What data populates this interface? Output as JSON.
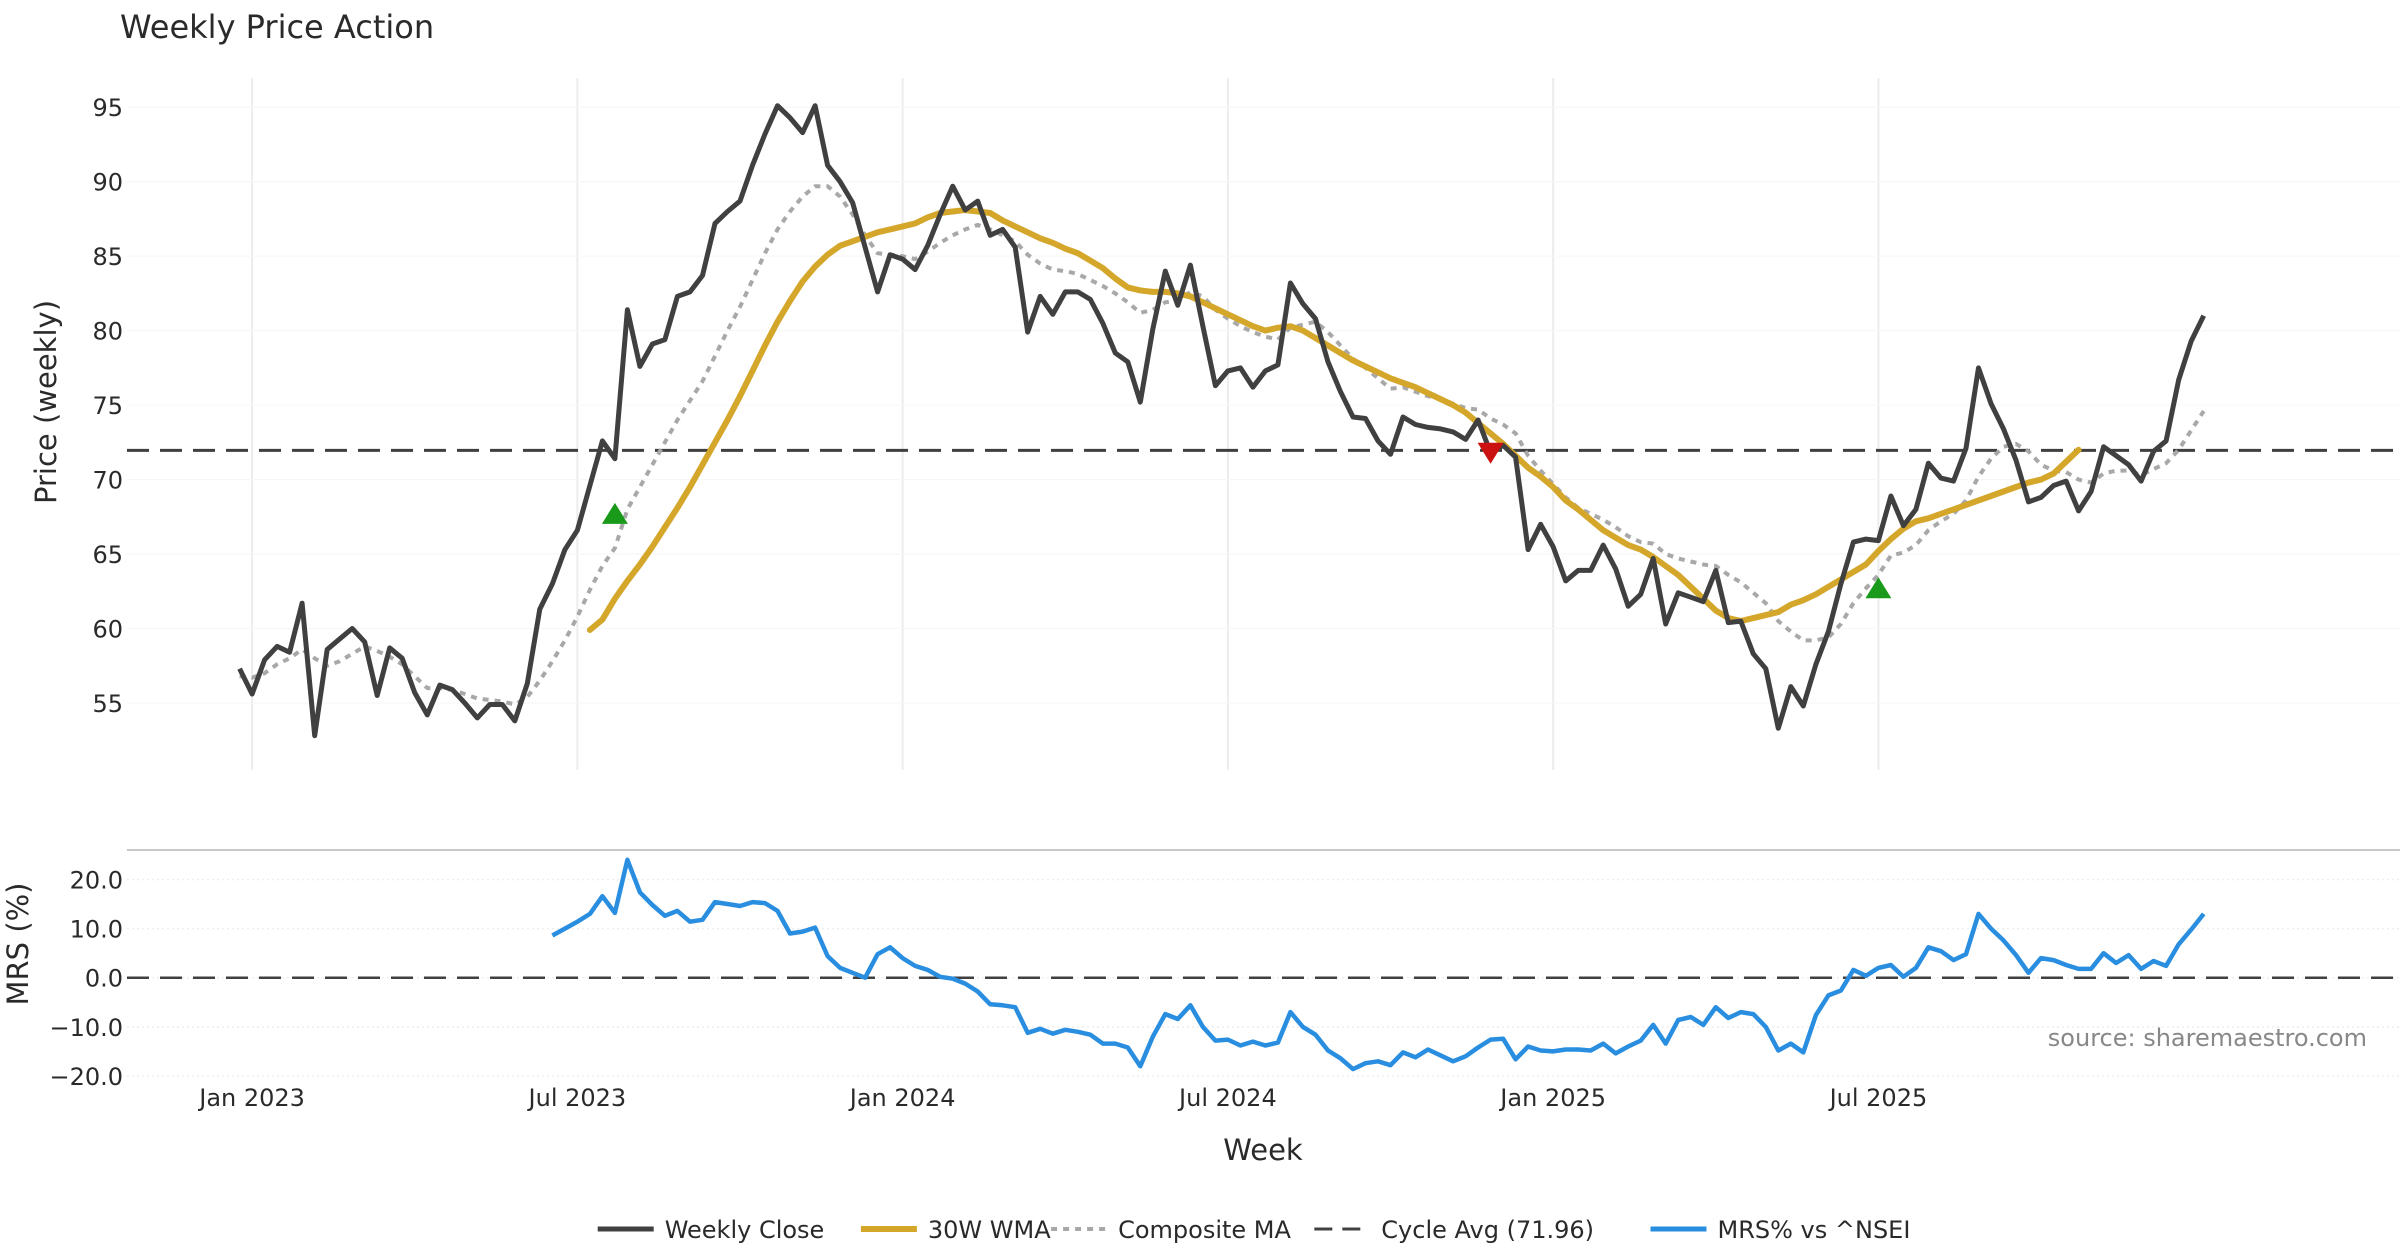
{
  "title": "Weekly Price Action",
  "source": "source: sharemaestro.com",
  "colors": {
    "close": "#404040",
    "wma": "#d4a62a",
    "composite": "#a8a8a8",
    "cycle": "#404040",
    "mrs": "#2a8ee0",
    "buy": "#1a9a1a",
    "sell": "#cc1111",
    "grid": "#ececec"
  },
  "chart_data": [
    {
      "type": "line",
      "title": "Weekly Price Action",
      "xlabel": "",
      "ylabel": "Price (weekly)",
      "ylim": [
        50.5,
        97.5
      ],
      "yticks": [
        55,
        60,
        65,
        70,
        75,
        80,
        85,
        90,
        95
      ],
      "x_start": "2022-12-26",
      "grid": true,
      "cycle_avg": 71.96,
      "series": [
        {
          "name": "Weekly Close",
          "values": [
            57.3,
            55.6,
            57.9,
            58.8,
            58.4,
            61.7,
            52.8,
            58.6,
            59.3,
            60.0,
            59.1,
            55.5,
            58.7,
            58.0,
            55.7,
            54.2,
            56.2,
            55.9,
            55.0,
            54.0,
            54.9,
            54.9,
            53.8,
            56.3,
            61.3,
            63.0,
            65.3,
            66.6,
            69.6,
            72.6,
            71.4,
            81.4,
            77.6,
            79.1,
            79.4,
            82.3,
            82.6,
            83.7,
            87.2,
            88.0,
            88.7,
            91.1,
            93.2,
            95.1,
            94.3,
            93.3,
            95.1,
            91.1,
            90.0,
            88.6,
            85.6,
            82.6,
            85.1,
            84.8,
            84.1,
            85.7,
            87.8,
            89.7,
            88.1,
            88.7,
            86.4,
            86.8,
            85.6,
            79.9,
            82.3,
            81.1,
            82.6,
            82.6,
            82.1,
            80.5,
            78.5,
            77.9,
            75.2,
            80.1,
            84.0,
            81.7,
            84.4,
            80.3,
            76.3,
            77.3,
            77.5,
            76.2,
            77.3,
            77.7,
            83.2,
            81.8,
            80.8,
            77.9,
            75.9,
            74.2,
            74.1,
            72.6,
            71.7,
            74.2,
            73.7,
            73.5,
            73.4,
            73.2,
            72.7,
            74.0,
            71.8,
            72.3,
            71.5,
            65.3,
            67.0,
            65.5,
            63.2,
            63.9,
            63.9,
            65.6,
            64.0,
            61.5,
            62.3,
            64.7,
            60.3,
            62.4,
            62.1,
            61.8,
            63.9,
            60.4,
            60.5,
            58.3,
            57.3,
            53.3,
            56.1,
            54.8,
            57.6,
            59.8,
            63.0,
            65.8,
            66.0,
            65.9,
            68.9,
            66.9,
            68.0,
            71.1,
            70.1,
            69.9,
            72.1,
            77.5,
            75.1,
            73.4,
            71.3,
            68.5,
            68.8,
            69.6,
            69.9,
            67.9,
            69.2,
            72.2,
            71.6,
            71.0,
            69.9,
            71.9,
            72.6,
            76.7,
            79.3,
            81.0
          ]
        },
        {
          "name": "30W WMA",
          "start_index": 28,
          "values": [
            59.9,
            60.6,
            62.0,
            63.2,
            64.3,
            65.5,
            66.8,
            68.1,
            69.5,
            71.0,
            72.5,
            74.0,
            75.6,
            77.3,
            79.0,
            80.6,
            82.0,
            83.3,
            84.3,
            85.1,
            85.7,
            86.0,
            86.3,
            86.6,
            86.8,
            87.0,
            87.2,
            87.6,
            87.9,
            88.0,
            88.1,
            88.0,
            87.9,
            87.4,
            87.0,
            86.6,
            86.2,
            85.9,
            85.5,
            85.2,
            84.7,
            84.2,
            83.5,
            82.9,
            82.7,
            82.6,
            82.6,
            82.5,
            82.3,
            81.9,
            81.5,
            81.1,
            80.7,
            80.3,
            80.0,
            80.2,
            80.3,
            80.0,
            79.5,
            79.0,
            78.5,
            78.0,
            77.6,
            77.2,
            76.8,
            76.5,
            76.2,
            75.8,
            75.4,
            75.0,
            74.5,
            73.8,
            73.1,
            72.4,
            71.6,
            70.8,
            70.2,
            69.5,
            68.6,
            68.0,
            67.3,
            66.6,
            66.1,
            65.6,
            65.3,
            64.8,
            64.2,
            63.6,
            62.8,
            62.0,
            61.2,
            60.7,
            60.5,
            60.7,
            60.9,
            61.1,
            61.6,
            61.9,
            62.3,
            62.8,
            63.3,
            63.8,
            64.3,
            65.2,
            66.0,
            66.7,
            67.2,
            67.4,
            67.7,
            68.0,
            68.3,
            68.6,
            68.9,
            69.2,
            69.5,
            69.8,
            70.0,
            70.4,
            71.2,
            72.0
          ]
        },
        {
          "name": "Composite MA",
          "values": [
            56.8,
            56.7,
            57.0,
            57.6,
            58.0,
            58.6,
            58.0,
            57.5,
            57.8,
            58.3,
            58.8,
            58.5,
            58.1,
            57.6,
            56.8,
            56.0,
            56.0,
            55.9,
            55.6,
            55.3,
            55.2,
            55.1,
            54.9,
            55.4,
            56.5,
            57.8,
            59.2,
            60.8,
            62.6,
            64.2,
            65.4,
            68.0,
            69.5,
            71.0,
            72.5,
            74.0,
            75.3,
            76.6,
            78.3,
            80.0,
            81.6,
            83.4,
            85.2,
            86.8,
            88.0,
            89.0,
            89.7,
            89.7,
            89.0,
            87.8,
            86.4,
            85.2,
            85.1,
            85.0,
            84.8,
            85.3,
            85.9,
            86.4,
            86.8,
            87.1,
            86.8,
            86.4,
            86.0,
            85.1,
            84.5,
            84.1,
            84.0,
            83.8,
            83.4,
            83.0,
            82.5,
            81.9,
            81.2,
            81.4,
            81.9,
            82.0,
            82.6,
            82.3,
            81.4,
            80.8,
            80.3,
            79.9,
            79.6,
            79.4,
            80.2,
            80.4,
            80.6,
            79.9,
            79.0,
            78.1,
            77.5,
            76.8,
            76.1,
            76.2,
            75.9,
            75.6,
            75.4,
            75.1,
            74.8,
            74.7,
            74.1,
            73.7,
            73.1,
            71.6,
            70.6,
            69.7,
            68.8,
            68.1,
            67.7,
            67.3,
            66.8,
            66.2,
            65.8,
            65.7,
            65.0,
            64.7,
            64.5,
            64.3,
            64.2,
            63.6,
            63.1,
            62.4,
            61.7,
            60.5,
            59.8,
            59.2,
            59.2,
            59.4,
            60.3,
            61.7,
            62.7,
            63.6,
            64.9,
            65.1,
            65.6,
            66.6,
            67.2,
            67.7,
            68.6,
            70.2,
            71.4,
            72.2,
            72.4,
            71.9,
            71.0,
            70.6,
            70.5,
            70.0,
            69.8,
            70.4,
            70.6,
            70.6,
            70.3,
            70.7,
            71.1,
            72.0,
            73.3,
            74.6
          ]
        }
      ],
      "signals": [
        {
          "type": "buy",
          "index": 30,
          "value": 67.7
        },
        {
          "type": "sell",
          "index": 100,
          "value": 71.8
        },
        {
          "type": "buy",
          "index": 131,
          "value": 62.7
        }
      ]
    },
    {
      "type": "line",
      "title": "",
      "xlabel": "Week",
      "ylabel": "MRS (%)",
      "ylim": [
        -20,
        26
      ],
      "yticks": [
        -20.0,
        -10.0,
        0.0,
        10.0,
        20.0
      ],
      "ytick_labels": [
        "−20.0",
        "−10.0",
        "0.0",
        "10.0",
        "20.0"
      ],
      "xticks": [
        {
          "label": "Jan 2023",
          "index": 1
        },
        {
          "label": "Jul 2023",
          "index": 27
        },
        {
          "label": "Jan 2024",
          "index": 53
        },
        {
          "label": "Jul 2024",
          "index": 79
        },
        {
          "label": "Jan 2025",
          "index": 105
        },
        {
          "label": "Jul 2025",
          "index": 131
        }
      ],
      "series": [
        {
          "name": "MRS% vs ^NSEI",
          "start_index": 25,
          "values": [
            8.6,
            10.0,
            11.4,
            13.0,
            16.6,
            13.2,
            24.0,
            17.4,
            14.8,
            12.6,
            13.6,
            11.4,
            11.8,
            15.4,
            15.0,
            14.6,
            15.4,
            15.2,
            13.6,
            9.0,
            9.4,
            10.2,
            4.4,
            2.0,
            1.0,
            0.0,
            4.8,
            6.2,
            4.0,
            2.4,
            1.6,
            0.2,
            -0.2,
            -1.2,
            -2.8,
            -5.4,
            -5.6,
            -6.0,
            -11.2,
            -10.4,
            -11.4,
            -10.6,
            -11.0,
            -11.6,
            -13.4,
            -13.4,
            -14.2,
            -18.0,
            -12.0,
            -7.4,
            -8.4,
            -5.6,
            -10.0,
            -12.8,
            -12.6,
            -13.8,
            -13.0,
            -13.8,
            -13.2,
            -7.0,
            -10.0,
            -11.6,
            -14.8,
            -16.4,
            -18.6,
            -17.4,
            -17.0,
            -17.8,
            -15.2,
            -16.2,
            -14.6,
            -15.8,
            -17.0,
            -16.0,
            -14.2,
            -12.6,
            -12.4,
            -16.6,
            -14.0,
            -14.8,
            -15.0,
            -14.6,
            -14.6,
            -14.8,
            -13.4,
            -15.4,
            -14.0,
            -12.8,
            -9.6,
            -13.4,
            -8.6,
            -8.0,
            -9.6,
            -6.0,
            -8.2,
            -7.0,
            -7.4,
            -10.0,
            -14.8,
            -13.4,
            -15.2,
            -7.6,
            -3.6,
            -2.6,
            1.6,
            0.4,
            2.0,
            2.6,
            0.2,
            2.0,
            6.2,
            5.4,
            3.6,
            4.8,
            13.0,
            10.0,
            7.6,
            4.6,
            1.0,
            4.0,
            3.6,
            2.6,
            1.8,
            1.8,
            5.0,
            3.0,
            4.6,
            1.8,
            3.4,
            2.4,
            6.8,
            9.8,
            13.0
          ]
        }
      ]
    }
  ],
  "legend": [
    {
      "label": "Weekly Close",
      "style": "solid",
      "color": "#404040"
    },
    {
      "label": "30W WMA",
      "style": "thick",
      "color": "#d4a62a"
    },
    {
      "label": "Composite MA",
      "style": "dotted",
      "color": "#a8a8a8"
    },
    {
      "label": "Cycle Avg (71.96)",
      "style": "dashed",
      "color": "#404040"
    },
    {
      "label": "MRS% vs ^NSEI",
      "style": "solid-blue",
      "color": "#2a8ee0"
    }
  ]
}
